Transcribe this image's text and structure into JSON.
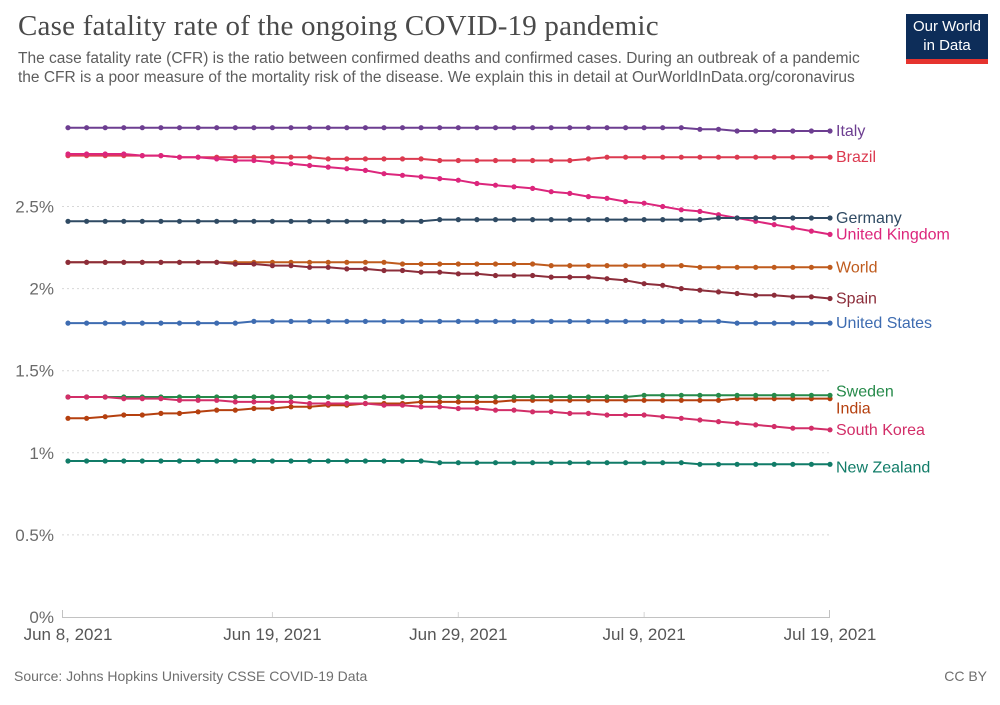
{
  "header": {
    "title": "Case fatality rate of the ongoing COVID-19 pandemic",
    "subtitle_text": "The case fatality rate (CFR) is the ratio between confirmed deaths and confirmed cases. During an outbreak of a pandemic the CFR is a poor measure of the mortality risk of the disease. We explain this in detail at ",
    "subtitle_link": "OurWorldInData.org/coronavirus",
    "logo": {
      "line1": "Our World",
      "line2": "in Data",
      "bg_color": "#0d2d59",
      "bar_color": "#e5332e"
    }
  },
  "footer": {
    "source": "Source: Johns Hopkins University CSSE COVID-19 Data",
    "license": "CC BY"
  },
  "chart_data": {
    "type": "line",
    "title": "Case fatality rate of the ongoing COVID-19 pandemic",
    "xlabel": "",
    "ylabel": "",
    "x_unit": "date (daily points)",
    "n_points": 42,
    "x_labels": [
      "Jun 8, 2021",
      "Jun 19, 2021",
      "Jun 29, 2021",
      "Jul 9, 2021",
      "Jul 19, 2021"
    ],
    "x_tick_indices": [
      0,
      11,
      21,
      31,
      41
    ],
    "y_ticks": [
      0,
      0.5,
      1,
      1.5,
      2,
      2.5
    ],
    "y_tick_labels": [
      "0%",
      "0.5%",
      "1%",
      "1.5%",
      "2%",
      "2.5%"
    ],
    "ylim": [
      0,
      3.05
    ],
    "grid": true,
    "legend_position": "right-end-labels",
    "series": [
      {
        "name": "Italy",
        "color": "#6d3e91",
        "values": [
          2.98,
          2.98,
          2.98,
          2.98,
          2.98,
          2.98,
          2.98,
          2.98,
          2.98,
          2.98,
          2.98,
          2.98,
          2.98,
          2.98,
          2.98,
          2.98,
          2.98,
          2.98,
          2.98,
          2.98,
          2.98,
          2.98,
          2.98,
          2.98,
          2.98,
          2.98,
          2.98,
          2.98,
          2.98,
          2.98,
          2.98,
          2.98,
          2.98,
          2.98,
          2.97,
          2.97,
          2.96,
          2.96,
          2.96,
          2.96,
          2.96,
          2.96
        ]
      },
      {
        "name": "Brazil",
        "color": "#dc3a50",
        "values": [
          2.81,
          2.81,
          2.81,
          2.81,
          2.81,
          2.81,
          2.8,
          2.8,
          2.8,
          2.8,
          2.8,
          2.8,
          2.8,
          2.8,
          2.79,
          2.79,
          2.79,
          2.79,
          2.79,
          2.79,
          2.78,
          2.78,
          2.78,
          2.78,
          2.78,
          2.78,
          2.78,
          2.78,
          2.79,
          2.8,
          2.8,
          2.8,
          2.8,
          2.8,
          2.8,
          2.8,
          2.8,
          2.8,
          2.8,
          2.8,
          2.8,
          2.8
        ]
      },
      {
        "name": "United Kingdom",
        "color": "#dc267c",
        "values": [
          2.82,
          2.82,
          2.82,
          2.82,
          2.81,
          2.81,
          2.8,
          2.8,
          2.79,
          2.78,
          2.78,
          2.77,
          2.76,
          2.75,
          2.74,
          2.73,
          2.72,
          2.7,
          2.69,
          2.68,
          2.67,
          2.66,
          2.64,
          2.63,
          2.62,
          2.61,
          2.59,
          2.58,
          2.56,
          2.55,
          2.53,
          2.52,
          2.5,
          2.48,
          2.47,
          2.45,
          2.43,
          2.41,
          2.39,
          2.37,
          2.35,
          2.33
        ]
      },
      {
        "name": "Germany",
        "color": "#2f4a63",
        "values": [
          2.41,
          2.41,
          2.41,
          2.41,
          2.41,
          2.41,
          2.41,
          2.41,
          2.41,
          2.41,
          2.41,
          2.41,
          2.41,
          2.41,
          2.41,
          2.41,
          2.41,
          2.41,
          2.41,
          2.41,
          2.42,
          2.42,
          2.42,
          2.42,
          2.42,
          2.42,
          2.42,
          2.42,
          2.42,
          2.42,
          2.42,
          2.42,
          2.42,
          2.42,
          2.42,
          2.43,
          2.43,
          2.43,
          2.43,
          2.43,
          2.43,
          2.43
        ]
      },
      {
        "name": "World",
        "color": "#bf5b1d",
        "values": [
          2.16,
          2.16,
          2.16,
          2.16,
          2.16,
          2.16,
          2.16,
          2.16,
          2.16,
          2.16,
          2.16,
          2.16,
          2.16,
          2.16,
          2.16,
          2.16,
          2.16,
          2.16,
          2.15,
          2.15,
          2.15,
          2.15,
          2.15,
          2.15,
          2.15,
          2.15,
          2.14,
          2.14,
          2.14,
          2.14,
          2.14,
          2.14,
          2.14,
          2.14,
          2.13,
          2.13,
          2.13,
          2.13,
          2.13,
          2.13,
          2.13,
          2.13
        ]
      },
      {
        "name": "Spain",
        "color": "#8c2d3a",
        "values": [
          2.16,
          2.16,
          2.16,
          2.16,
          2.16,
          2.16,
          2.16,
          2.16,
          2.16,
          2.15,
          2.15,
          2.14,
          2.14,
          2.13,
          2.13,
          2.12,
          2.12,
          2.11,
          2.11,
          2.1,
          2.1,
          2.09,
          2.09,
          2.08,
          2.08,
          2.08,
          2.07,
          2.07,
          2.07,
          2.06,
          2.05,
          2.03,
          2.02,
          2.0,
          1.99,
          1.98,
          1.97,
          1.96,
          1.96,
          1.95,
          1.95,
          1.94
        ]
      },
      {
        "name": "United States",
        "color": "#3e6cb1",
        "values": [
          1.79,
          1.79,
          1.79,
          1.79,
          1.79,
          1.79,
          1.79,
          1.79,
          1.79,
          1.79,
          1.8,
          1.8,
          1.8,
          1.8,
          1.8,
          1.8,
          1.8,
          1.8,
          1.8,
          1.8,
          1.8,
          1.8,
          1.8,
          1.8,
          1.8,
          1.8,
          1.8,
          1.8,
          1.8,
          1.8,
          1.8,
          1.8,
          1.8,
          1.8,
          1.8,
          1.8,
          1.79,
          1.79,
          1.79,
          1.79,
          1.79,
          1.79
        ]
      },
      {
        "name": "India",
        "color": "#b5400f",
        "label_dy": 10,
        "values": [
          1.21,
          1.21,
          1.22,
          1.23,
          1.23,
          1.24,
          1.24,
          1.25,
          1.26,
          1.26,
          1.27,
          1.27,
          1.28,
          1.28,
          1.29,
          1.29,
          1.3,
          1.3,
          1.3,
          1.31,
          1.31,
          1.31,
          1.31,
          1.31,
          1.32,
          1.32,
          1.32,
          1.32,
          1.32,
          1.32,
          1.32,
          1.32,
          1.32,
          1.32,
          1.32,
          1.32,
          1.33,
          1.33,
          1.33,
          1.33,
          1.33,
          1.33
        ]
      },
      {
        "name": "Sweden",
        "color": "#268a4a",
        "label_dy": -4,
        "values": [
          1.34,
          1.34,
          1.34,
          1.34,
          1.34,
          1.34,
          1.34,
          1.34,
          1.34,
          1.34,
          1.34,
          1.34,
          1.34,
          1.34,
          1.34,
          1.34,
          1.34,
          1.34,
          1.34,
          1.34,
          1.34,
          1.34,
          1.34,
          1.34,
          1.34,
          1.34,
          1.34,
          1.34,
          1.34,
          1.34,
          1.34,
          1.35,
          1.35,
          1.35,
          1.35,
          1.35,
          1.35,
          1.35,
          1.35,
          1.35,
          1.35,
          1.35
        ]
      },
      {
        "name": "South Korea",
        "color": "#d22e68",
        "values": [
          1.34,
          1.34,
          1.34,
          1.33,
          1.33,
          1.33,
          1.32,
          1.32,
          1.32,
          1.31,
          1.31,
          1.31,
          1.31,
          1.3,
          1.3,
          1.3,
          1.3,
          1.29,
          1.29,
          1.28,
          1.28,
          1.27,
          1.27,
          1.26,
          1.26,
          1.25,
          1.25,
          1.24,
          1.24,
          1.23,
          1.23,
          1.23,
          1.22,
          1.21,
          1.2,
          1.19,
          1.18,
          1.17,
          1.16,
          1.15,
          1.15,
          1.14
        ]
      },
      {
        "name": "New Zealand",
        "color": "#117c68",
        "label_dy": 3,
        "values": [
          0.95,
          0.95,
          0.95,
          0.95,
          0.95,
          0.95,
          0.95,
          0.95,
          0.95,
          0.95,
          0.95,
          0.95,
          0.95,
          0.95,
          0.95,
          0.95,
          0.95,
          0.95,
          0.95,
          0.95,
          0.94,
          0.94,
          0.94,
          0.94,
          0.94,
          0.94,
          0.94,
          0.94,
          0.94,
          0.94,
          0.94,
          0.94,
          0.94,
          0.94,
          0.93,
          0.93,
          0.93,
          0.93,
          0.93,
          0.93,
          0.93,
          0.93
        ]
      }
    ]
  }
}
